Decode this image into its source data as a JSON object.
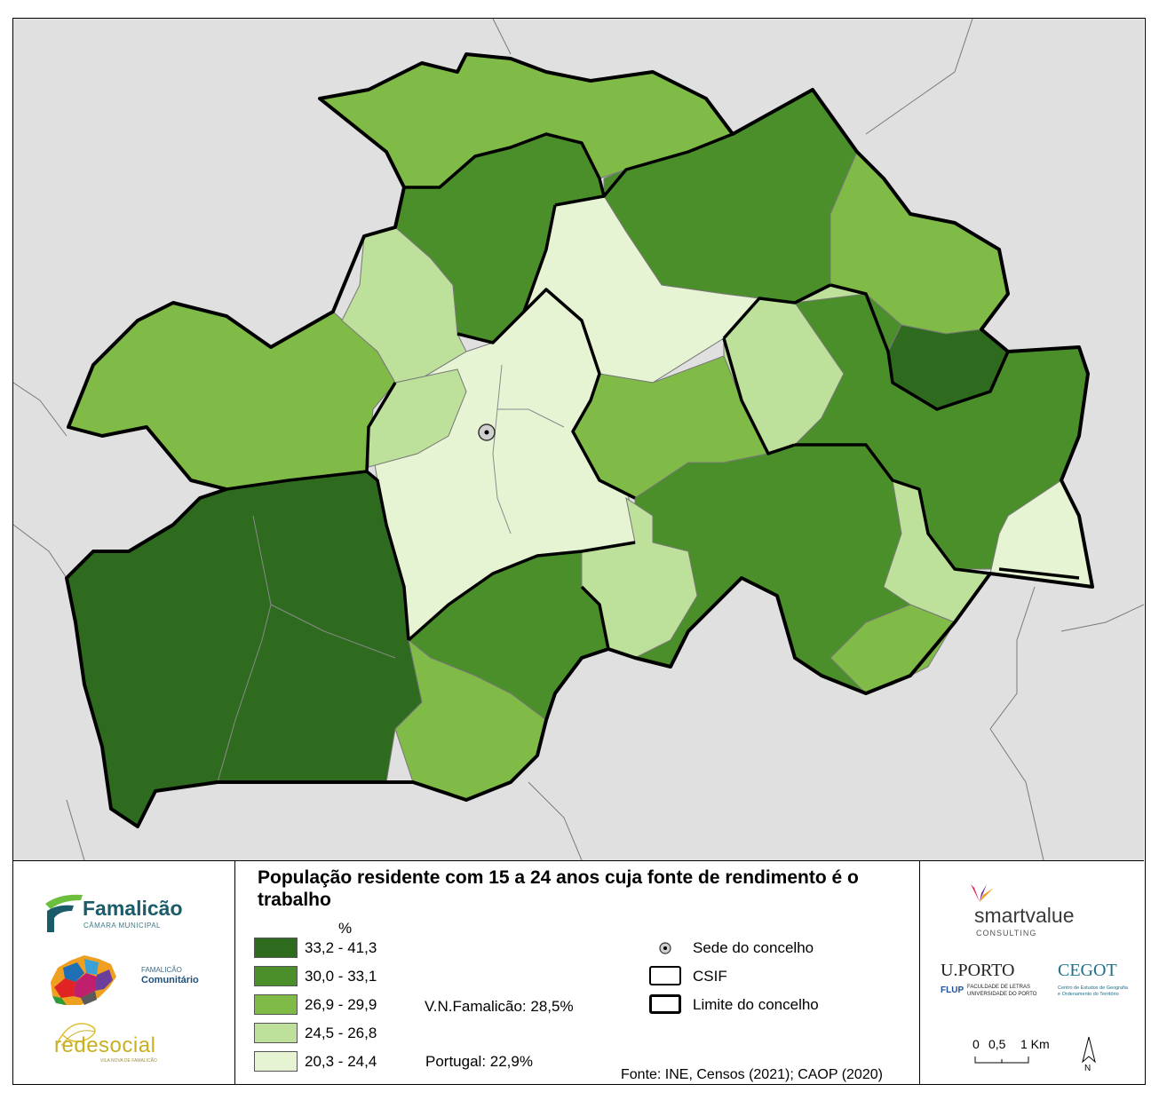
{
  "map": {
    "colors": {
      "background": "#e0e0e0",
      "class_5": "#2e6b1e",
      "class_4": "#4b8f2a",
      "class_3": "#80bb47",
      "class_2": "#bde09a",
      "class_1": "#e6f4d3"
    },
    "seat_symbol": "concelho-seat-icon"
  },
  "legend": {
    "title": "População residente com 15 a 24 anos cuja fonte de rendimento é o trabalho",
    "unit": "%",
    "classes": [
      {
        "label": "33,2 - 41,3",
        "color": "#2e6b1e"
      },
      {
        "label": "30,0 - 33,1",
        "color": "#4b8f2a"
      },
      {
        "label": "26,9 - 29,9",
        "color": "#80bb47"
      },
      {
        "label": "24,5 - 26,8",
        "color": "#bde09a"
      },
      {
        "label": "20,3 - 24,4",
        "color": "#e6f4d3"
      }
    ],
    "vnf_stat": "V.N.Famalicão: 28,5%",
    "pt_stat": "Portugal: 22,9%",
    "symbols": {
      "seat": "Sede do concelho",
      "csif": "CSIF",
      "limit": "Limite do concelho"
    },
    "source": "Fonte: INE, Censos (2021); CAOP (2020)",
    "scale": {
      "zero": "0",
      "half": "0,5",
      "one": "1 Km"
    },
    "north": "N"
  },
  "logos": {
    "famalicao": {
      "name": "Famalicão",
      "sub": "CÂMARA MUNICIPAL"
    },
    "comunitario": {
      "line1": "FAMALICÃO",
      "line2": "Comunitário"
    },
    "redesocial": {
      "name": "redesocial",
      "sub": "VILA NOVA DE FAMALICÃO"
    },
    "smartvalue": {
      "name": "smartvalue",
      "sub": "CONSULTING"
    },
    "uporto": {
      "name": "U.PORTO",
      "flup": "FLUP",
      "fac": "FACULDADE DE LETRAS",
      "univ": "UNIVERSIDADE DO PORTO"
    },
    "cegot": {
      "name": "CEGOT",
      "sub1": "Centro de Estudos de Geografia",
      "sub2": "e Ordenamento do Território"
    }
  }
}
